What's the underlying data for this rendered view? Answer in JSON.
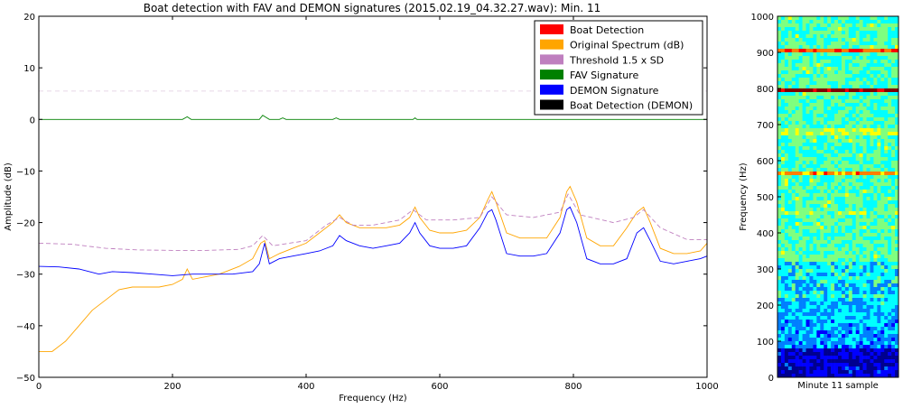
{
  "chart_data": [
    {
      "type": "line",
      "title": "Boat detection with FAV and DEMON signatures (2015.02.19_04.32.27.wav): Min. 11",
      "xlabel": "Frequency (Hz)",
      "ylabel": "Amplitude (dB)",
      "xlim": [
        0,
        1000
      ],
      "ylim": [
        -50,
        20
      ],
      "xticks": [
        "0",
        "200",
        "400",
        "600",
        "800",
        "1000"
      ],
      "yticks": [
        "20",
        "10",
        "0",
        "−10",
        "−20",
        "−30",
        "−40",
        "−50"
      ],
      "grid": false,
      "legend_position": "top-right",
      "legend": [
        {
          "label": "Boat Detection",
          "color": "#ff0000"
        },
        {
          "label": "Original Spectrum (dB)",
          "color": "#ffa500"
        },
        {
          "label": "Threshold 1.5 x SD",
          "color": "#bf7fbf"
        },
        {
          "label": "FAV Signature",
          "color": "#008000"
        },
        {
          "label": "DEMON Signature",
          "color": "#0000ff"
        },
        {
          "label": "Boat Detection (DEMON)",
          "color": "#000000"
        }
      ],
      "series": [
        {
          "name": "Original Spectrum (dB)",
          "color": "#ffa500",
          "x": [
            0,
            20,
            40,
            60,
            80,
            100,
            120,
            140,
            160,
            180,
            200,
            215,
            222,
            230,
            250,
            270,
            300,
            320,
            332,
            338,
            345,
            360,
            380,
            400,
            420,
            440,
            450,
            460,
            480,
            500,
            520,
            540,
            555,
            563,
            570,
            585,
            600,
            620,
            640,
            660,
            672,
            678,
            684,
            700,
            720,
            740,
            760,
            780,
            790,
            795,
            805,
            820,
            840,
            860,
            880,
            895,
            905,
            915,
            930,
            950,
            970,
            990,
            1000
          ],
          "y": [
            -45,
            -45,
            -43,
            -40,
            -37,
            -35,
            -33,
            -32.5,
            -32.5,
            -32.5,
            -32,
            -31,
            -29,
            -31,
            -30.5,
            -30,
            -28.5,
            -27,
            -24,
            -23.5,
            -27,
            -26,
            -25,
            -24,
            -22,
            -20,
            -18.5,
            -20,
            -21,
            -21,
            -21,
            -20.5,
            -19,
            -17,
            -19,
            -21.5,
            -22,
            -22,
            -21.5,
            -19,
            -15.5,
            -14,
            -16,
            -22,
            -23,
            -23,
            -23,
            -19,
            -14,
            -13,
            -16,
            -23,
            -24.5,
            -24.5,
            -21,
            -18,
            -17,
            -20,
            -25,
            -26,
            -26,
            -25.5,
            -24
          ]
        },
        {
          "name": "Threshold 1.5 x SD",
          "color": "#bf7fbf",
          "x": [
            0,
            50,
            100,
            150,
            200,
            250,
            300,
            320,
            335,
            350,
            400,
            430,
            450,
            470,
            500,
            540,
            560,
            580,
            620,
            660,
            678,
            700,
            740,
            780,
            792,
            810,
            860,
            890,
            905,
            930,
            970,
            1000
          ],
          "y": [
            -24,
            -24.2,
            -25,
            -25.3,
            -25.4,
            -25.4,
            -25.2,
            -24.5,
            -22.5,
            -24.5,
            -23.5,
            -20.5,
            -19,
            -20.5,
            -20.5,
            -19.5,
            -17.5,
            -19.5,
            -19.5,
            -19,
            -15,
            -18.5,
            -19,
            -18,
            -14.5,
            -18.5,
            -20,
            -19,
            -17.5,
            -21,
            -23.3,
            -23.3
          ]
        },
        {
          "name": "FAV Signature",
          "color": "#008000",
          "x": [
            0,
            100,
            215,
            222,
            228,
            330,
            335,
            340,
            345,
            360,
            365,
            370,
            440,
            445,
            450,
            560,
            563,
            566,
            700,
            1000
          ],
          "y": [
            0,
            0,
            0,
            0.5,
            0,
            0,
            0.8,
            0.4,
            0,
            0,
            0.3,
            0,
            0,
            0.3,
            0,
            0,
            0.3,
            0,
            0,
            0
          ]
        },
        {
          "name": "DEMON Signature",
          "color": "#0000ff",
          "x": [
            0,
            30,
            60,
            90,
            110,
            140,
            170,
            200,
            230,
            260,
            290,
            320,
            330,
            338,
            345,
            360,
            380,
            400,
            420,
            440,
            450,
            460,
            480,
            500,
            520,
            540,
            555,
            563,
            570,
            585,
            600,
            620,
            640,
            660,
            672,
            678,
            684,
            700,
            720,
            740,
            760,
            780,
            790,
            795,
            805,
            820,
            840,
            860,
            880,
            895,
            905,
            915,
            930,
            950,
            970,
            990,
            1000
          ],
          "y": [
            -28.5,
            -28.6,
            -29,
            -30,
            -29.5,
            -29.7,
            -30,
            -30.3,
            -30,
            -30,
            -30,
            -29.5,
            -28,
            -24,
            -28,
            -27,
            -26.5,
            -26,
            -25.5,
            -24.5,
            -22.5,
            -23.5,
            -24.5,
            -25,
            -24.5,
            -24,
            -22,
            -20,
            -22,
            -24.5,
            -25,
            -25,
            -24.5,
            -21,
            -18,
            -17.5,
            -19.5,
            -26,
            -26.5,
            -26.5,
            -26,
            -22,
            -17.5,
            -17,
            -20,
            -27,
            -28,
            -28,
            -27,
            -22,
            -21,
            -23.5,
            -27.5,
            -28,
            -27.5,
            -27,
            -26.5
          ]
        }
      ]
    },
    {
      "type": "heatmap",
      "title": "",
      "xlabel": "Minute 11 sample",
      "ylabel": "Frequency (Hz)",
      "ylim": [
        0,
        1000
      ],
      "yticks": [
        "0",
        "100",
        "200",
        "300",
        "400",
        "500",
        "600",
        "700",
        "800",
        "900",
        "1000"
      ],
      "colormap": [
        "#00008f",
        "#0000ff",
        "#007fff",
        "#00ffff",
        "#7fff7f",
        "#ffff00",
        "#ff7f00",
        "#ff0000",
        "#7f0000"
      ],
      "bands_hz": [
        {
          "freq": 906,
          "level": 0.85
        },
        {
          "freq": 795,
          "level": 0.95
        },
        {
          "freq": 680,
          "level": 0.85
        },
        {
          "freq": 565,
          "level": 0.7
        },
        {
          "freq": 452,
          "level": 0.65
        },
        {
          "freq": 340,
          "level": 0.55
        },
        {
          "freq": 228,
          "level": 0.5
        }
      ]
    }
  ]
}
